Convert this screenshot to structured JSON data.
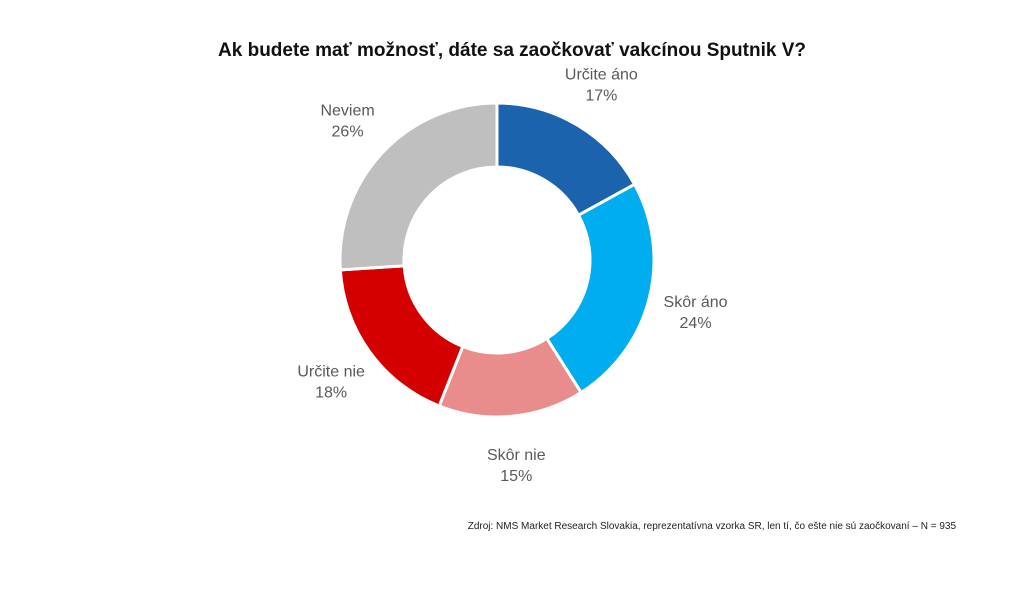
{
  "chart_data": {
    "type": "donut",
    "title": "Ak budete mať možnosť, dáte sa zaočkovať vakcínou Sputnik V?",
    "slices": [
      {
        "label": "Určite áno",
        "value": 17,
        "value_label": "17%",
        "color": "#1b63ad"
      },
      {
        "label": "Skôr áno",
        "value": 24,
        "value_label": "24%",
        "color": "#00aeef"
      },
      {
        "label": "Skôr nie",
        "value": 15,
        "value_label": "15%",
        "color": "#e88c8c"
      },
      {
        "label": "Určite nie",
        "value": 18,
        "value_label": "18%",
        "color": "#d40000"
      },
      {
        "label": "Neviem",
        "value": 26,
        "value_label": "26%",
        "color": "#bfbfbf"
      }
    ],
    "legend": "none"
  },
  "source": "Zdroj: NMS Market Research Slovakia, reprezentatívna vzorka SR, len tí, čo ešte nie sú zaočkovaní – N = 935"
}
